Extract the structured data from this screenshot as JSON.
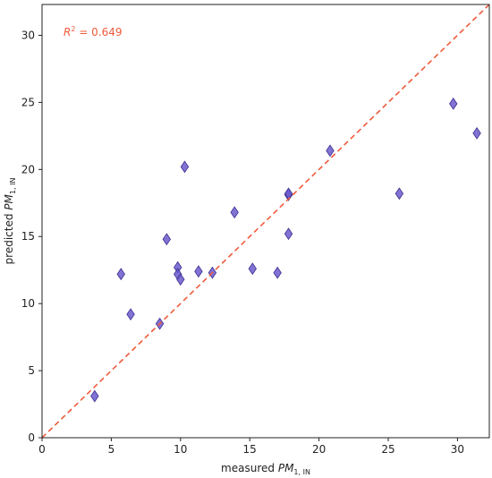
{
  "chart_data": {
    "type": "scatter",
    "xlabel": {
      "prefix": "measured ",
      "var": "PM",
      "sub": "1, IN"
    },
    "ylabel": {
      "prefix": "predicted ",
      "var": "PM",
      "sub": "1, IN"
    },
    "xlim": [
      0,
      32.3
    ],
    "ylim": [
      0,
      32.3
    ],
    "xticks": [
      0,
      5,
      10,
      15,
      20,
      25,
      30
    ],
    "yticks": [
      0,
      5,
      10,
      15,
      20,
      25,
      30
    ],
    "reference_line": {
      "style": "dashed",
      "slope": 1,
      "intercept": 0,
      "color": "#f05a3a"
    },
    "annotation": {
      "label": "R",
      "sup": "2",
      "value": " = 0.649",
      "color": "#f05a3a"
    },
    "marker": {
      "shape": "diamond",
      "color": "#6a5acd",
      "edge": "#3b2e8f"
    },
    "grid": false,
    "legend": "none",
    "points": [
      {
        "x": 3.8,
        "y": 3.1
      },
      {
        "x": 5.7,
        "y": 12.2
      },
      {
        "x": 6.4,
        "y": 9.2
      },
      {
        "x": 8.5,
        "y": 8.5
      },
      {
        "x": 9.0,
        "y": 14.8
      },
      {
        "x": 9.8,
        "y": 12.7
      },
      {
        "x": 9.8,
        "y": 12.2
      },
      {
        "x": 10.0,
        "y": 11.8
      },
      {
        "x": 10.3,
        "y": 20.2
      },
      {
        "x": 11.3,
        "y": 12.4
      },
      {
        "x": 12.3,
        "y": 12.3
      },
      {
        "x": 13.9,
        "y": 16.8
      },
      {
        "x": 15.2,
        "y": 12.6
      },
      {
        "x": 17.0,
        "y": 12.3
      },
      {
        "x": 17.8,
        "y": 18.1
      },
      {
        "x": 17.8,
        "y": 18.2
      },
      {
        "x": 17.8,
        "y": 15.2
      },
      {
        "x": 20.8,
        "y": 21.4
      },
      {
        "x": 25.8,
        "y": 18.2
      },
      {
        "x": 29.7,
        "y": 24.9
      },
      {
        "x": 31.4,
        "y": 22.7
      }
    ]
  }
}
